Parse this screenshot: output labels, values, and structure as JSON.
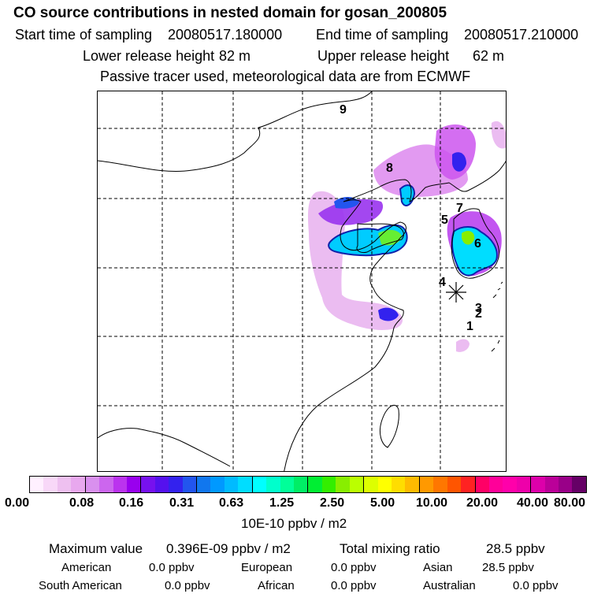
{
  "header": {
    "title": "CO  source contributions in nested domain for gosan_200805",
    "start_label": "Start time of sampling",
    "start_value": "20080517.180000",
    "end_label": "End time of sampling",
    "end_value": "20080517.210000",
    "lower_label": "Lower release height",
    "lower_value": "82 m",
    "upper_label": "Upper release height",
    "upper_value": "62 m",
    "tracer_note": "Passive tracer used, meteorological data are from ECMWF"
  },
  "map": {
    "labels": [
      {
        "id": "9",
        "text": "9"
      },
      {
        "id": "8",
        "text": "8"
      },
      {
        "id": "7",
        "text": "7"
      },
      {
        "id": "5",
        "text": "5"
      },
      {
        "id": "6",
        "text": "6"
      },
      {
        "id": "4",
        "text": "4"
      },
      {
        "id": "3",
        "text": "3"
      },
      {
        "id": "2",
        "text": "2"
      },
      {
        "id": "1",
        "text": "1"
      }
    ],
    "receptor_marker": "asterisk"
  },
  "colorbar": {
    "colors": [
      "#fff0ff",
      "#f8d8f8",
      "#eec0f0",
      "#e8a8ee",
      "#d990ee",
      "#cc66ee",
      "#bb33ee",
      "#9900ee",
      "#7711ee",
      "#5511ee",
      "#3322ee",
      "#2255ee",
      "#1177ee",
      "#0099ff",
      "#00bbff",
      "#00ddff",
      "#00ffff",
      "#00ffcc",
      "#00ff99",
      "#00ee66",
      "#00ee33",
      "#33ee00",
      "#88ee00",
      "#bbff00",
      "#ddff00",
      "#ffff00",
      "#ffdd00",
      "#ffbb00",
      "#ff9900",
      "#ff7700",
      "#ff5500",
      "#ff2222",
      "#ff0066",
      "#ff0099",
      "#ff00aa",
      "#ee00aa",
      "#dd00aa",
      "#bb0099",
      "#990088",
      "#660066"
    ],
    "ticks": [
      "0.00",
      "0.08",
      "0.16",
      "0.31",
      "0.63",
      "1.25",
      "2.50",
      "5.00",
      "10.00",
      "20.00",
      "40.00",
      "80.00"
    ],
    "unit": "10E-10 ppbv / m2"
  },
  "stats": {
    "max_label": "Maximum value",
    "max_value": "0.396E-09 ppbv / m2",
    "total_label": "Total mixing ratio",
    "total_value": "28.5 ppbv",
    "regions": [
      {
        "name": "American",
        "value": "0.0 ppbv"
      },
      {
        "name": "European",
        "value": "0.0 ppbv"
      },
      {
        "name": "Asian",
        "value": "28.5 ppbv"
      },
      {
        "name": "South American",
        "value": "0.0 ppbv"
      },
      {
        "name": "African",
        "value": "0.0 ppbv"
      },
      {
        "name": "Australian",
        "value": "0.0 ppbv"
      }
    ]
  }
}
